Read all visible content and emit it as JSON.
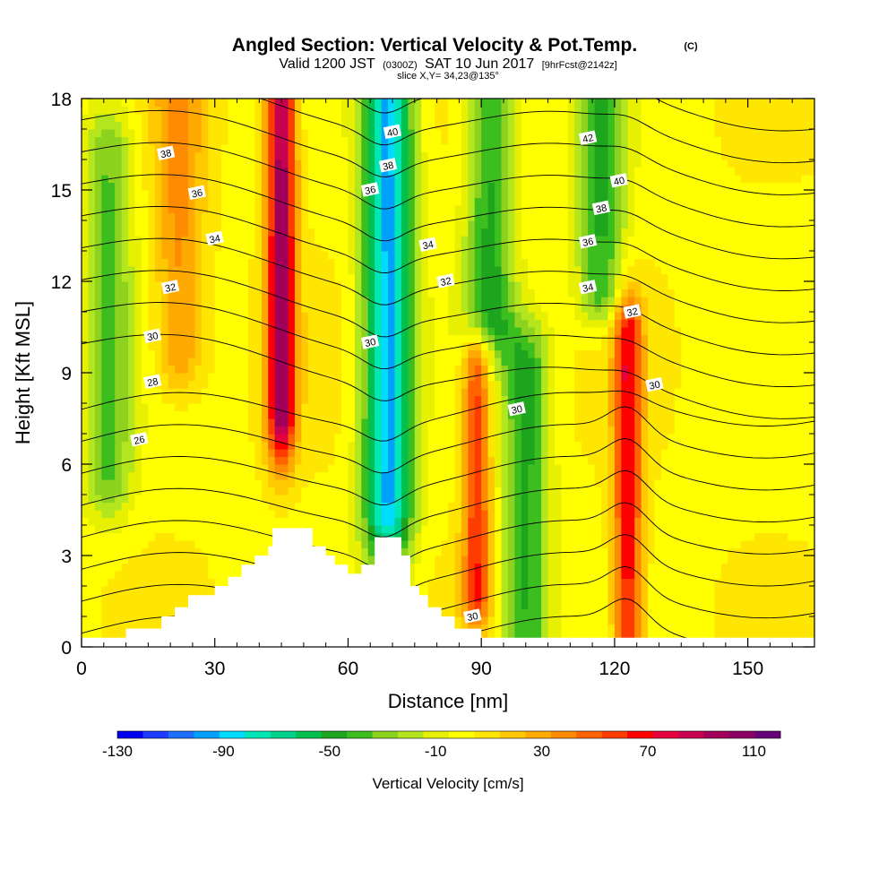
{
  "title": {
    "main": "Angled Section: Vertical Velocity & Pot.Temp.",
    "main_units": "(C)",
    "valid_prefix": "Valid 1200 JST",
    "valid_utc": "(0300Z)",
    "valid_date": "SAT 10 Jun 2017",
    "forecast": "[9hrFcst@2142z]",
    "slice": "slice X,Y= 34,23@135°"
  },
  "chart_data": {
    "type": "heatmap",
    "xlabel": "Distance [nm]",
    "ylabel": "Height [Kft MSL]",
    "xlim": [
      0,
      165
    ],
    "ylim": [
      0,
      18
    ],
    "x_ticks": [
      0,
      30,
      60,
      90,
      120,
      150
    ],
    "y_ticks": [
      0,
      3,
      6,
      9,
      12,
      15,
      18
    ],
    "colorbar": {
      "label": "Vertical Velocity [cm/s]",
      "tick_labels": [
        -130,
        -90,
        -50,
        -10,
        30,
        70,
        110
      ],
      "range": [
        -130,
        120
      ],
      "step": 10,
      "colors": [
        "#0000f0",
        "#1e3cff",
        "#1e6eff",
        "#00a0ff",
        "#00dcff",
        "#00e6b4",
        "#00d28c",
        "#00c050",
        "#1ea51e",
        "#3cbe1e",
        "#8cd21e",
        "#b4e61e",
        "#e6f000",
        "#ffff00",
        "#ffe600",
        "#ffc800",
        "#ffaa00",
        "#ff8c00",
        "#ff6400",
        "#ff3c00",
        "#ff0000",
        "#e6003c",
        "#c80050",
        "#a0005a",
        "#8c0064",
        "#640078"
      ]
    },
    "vertical_velocity_features_cm_s": [
      {
        "x": 45,
        "z_range": [
          9,
          18
        ],
        "peak": 110
      },
      {
        "x": 22,
        "z_range": [
          11,
          18
        ],
        "peak": 45
      },
      {
        "x": 69,
        "z_range": [
          6,
          18
        ],
        "peak": -90
      },
      {
        "x": 89,
        "z_range": [
          3,
          8
        ],
        "peak": 70
      },
      {
        "x": 123,
        "z_range": [
          1,
          9
        ],
        "peak": 80
      },
      {
        "x": 100,
        "z_range": [
          1,
          8
        ],
        "peak": -40
      },
      {
        "x": 117,
        "z_range": [
          13,
          18
        ],
        "peak": -40
      },
      {
        "x": 6,
        "z_range": [
          7,
          15
        ],
        "peak": -30
      },
      {
        "x": 92,
        "z_range": [
          12,
          18
        ],
        "peak": -40
      }
    ],
    "potential_temperature_contour_labels": [
      {
        "value": 26,
        "x": 13,
        "z": 6.8
      },
      {
        "value": 28,
        "x": 16,
        "z": 8.7
      },
      {
        "value": 30,
        "x": 16,
        "z": 10.2
      },
      {
        "value": 30,
        "x": 65,
        "z": 10.0
      },
      {
        "value": 30,
        "x": 98,
        "z": 7.8
      },
      {
        "value": 30,
        "x": 129,
        "z": 8.6
      },
      {
        "value": 30,
        "x": 88,
        "z": 1.0
      },
      {
        "value": 32,
        "x": 20,
        "z": 11.8
      },
      {
        "value": 32,
        "x": 82,
        "z": 12.0
      },
      {
        "value": 32,
        "x": 124,
        "z": 11.0
      },
      {
        "value": 34,
        "x": 30,
        "z": 13.4
      },
      {
        "value": 34,
        "x": 78,
        "z": 13.2
      },
      {
        "value": 34,
        "x": 114,
        "z": 11.8
      },
      {
        "value": 36,
        "x": 26,
        "z": 14.9
      },
      {
        "value": 36,
        "x": 65,
        "z": 15.0
      },
      {
        "value": 36,
        "x": 114,
        "z": 13.3
      },
      {
        "value": 38,
        "x": 19,
        "z": 16.2
      },
      {
        "value": 38,
        "x": 69,
        "z": 15.8
      },
      {
        "value": 38,
        "x": 117,
        "z": 14.4
      },
      {
        "value": 40,
        "x": 70,
        "z": 16.9
      },
      {
        "value": 40,
        "x": 121,
        "z": 15.3
      },
      {
        "value": 42,
        "x": 114,
        "z": 16.7
      }
    ],
    "terrain_nm_kft": [
      [
        0,
        0.3
      ],
      [
        10,
        0.3
      ],
      [
        10,
        0.6
      ],
      [
        18,
        0.6
      ],
      [
        18,
        1.0
      ],
      [
        21,
        1.0
      ],
      [
        21,
        1.3
      ],
      [
        24,
        1.3
      ],
      [
        24,
        1.7
      ],
      [
        30,
        1.7
      ],
      [
        30,
        2.0
      ],
      [
        33,
        2.0
      ],
      [
        33,
        2.3
      ],
      [
        36,
        2.3
      ],
      [
        36,
        2.7
      ],
      [
        39,
        2.7
      ],
      [
        39,
        3.0
      ],
      [
        42,
        3.0
      ],
      [
        42,
        3.3
      ],
      [
        43,
        3.3
      ],
      [
        43,
        3.9
      ],
      [
        52,
        3.9
      ],
      [
        52,
        3.3
      ],
      [
        55,
        3.3
      ],
      [
        55,
        3.0
      ],
      [
        57,
        3.0
      ],
      [
        57,
        2.7
      ],
      [
        60,
        2.7
      ],
      [
        60,
        2.4
      ],
      [
        63,
        2.4
      ],
      [
        63,
        2.7
      ],
      [
        66,
        2.7
      ],
      [
        66,
        3.6
      ],
      [
        72,
        3.6
      ],
      [
        72,
        3.0
      ],
      [
        74,
        3.0
      ],
      [
        74,
        2.0
      ],
      [
        76,
        2.0
      ],
      [
        76,
        1.7
      ],
      [
        78,
        1.7
      ],
      [
        78,
        1.3
      ],
      [
        81,
        1.3
      ],
      [
        81,
        1.0
      ],
      [
        84,
        1.0
      ],
      [
        84,
        0.6
      ],
      [
        90,
        0.6
      ],
      [
        90,
        0.3
      ],
      [
        165,
        0.3
      ]
    ]
  }
}
